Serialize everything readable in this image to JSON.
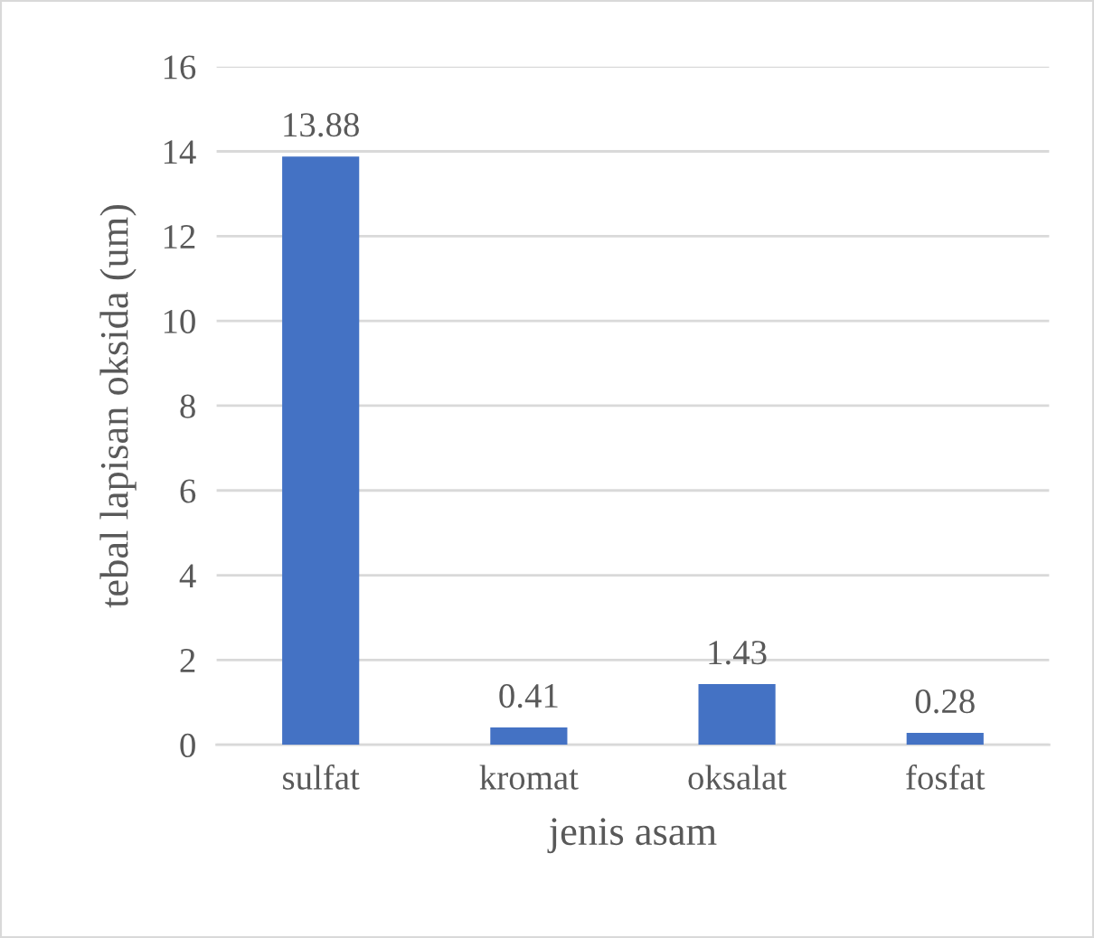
{
  "chart_data": {
    "type": "bar",
    "xlabel": "jenis asam",
    "ylabel": "tebal lapisan oksida (um)",
    "categories": [
      "sulfat",
      "kromat",
      "oksalat",
      "fosfat"
    ],
    "values": [
      13.88,
      0.41,
      1.43,
      0.28
    ],
    "color": "#4472c4",
    "ylim": [
      0,
      16
    ],
    "yticks": [
      0,
      2,
      4,
      6,
      8,
      10,
      12,
      14,
      16
    ],
    "grid": "y",
    "data_labels": true,
    "legend": false
  }
}
